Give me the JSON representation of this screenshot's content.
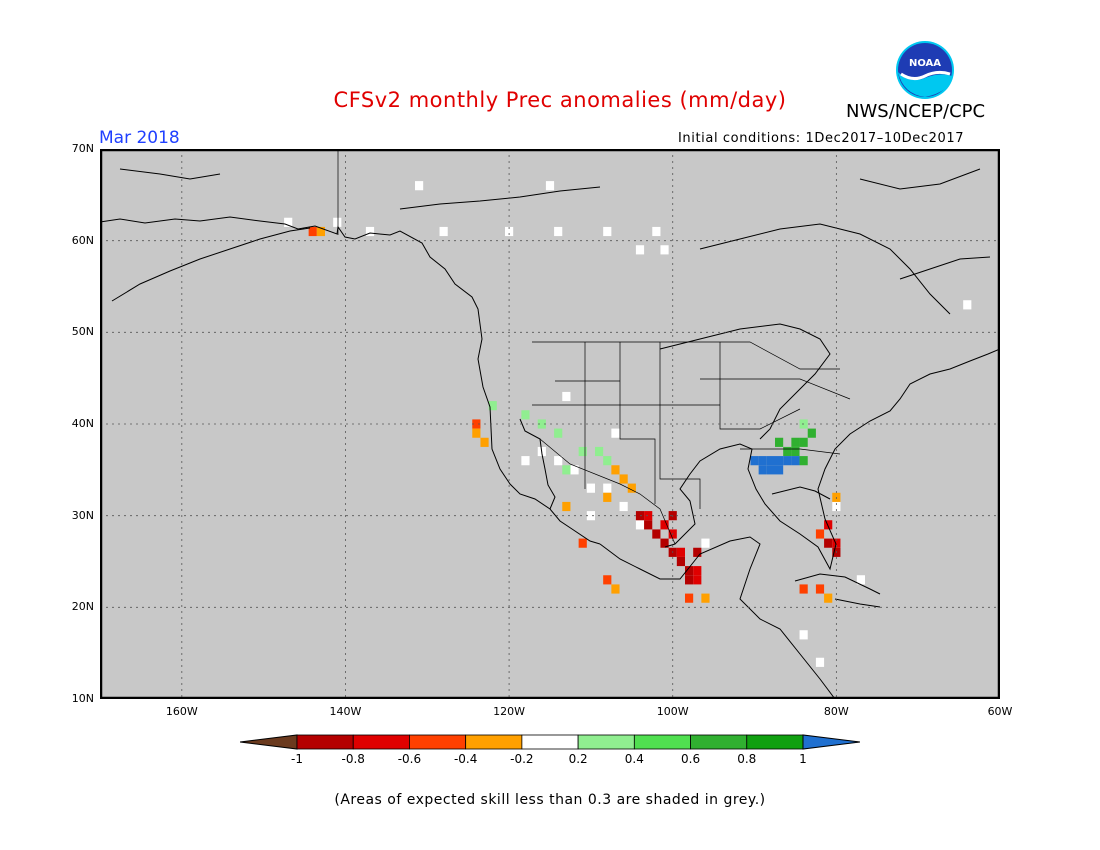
{
  "title": "CFSv2 monthly Prec anomalies (mm/day)",
  "month": "Mar 2018",
  "organization": "NWS/NCEP/CPC",
  "logo_text": "NOAA",
  "initial_conditions": "Initial conditions: 1Dec2017–10Dec2017",
  "footnote": "(Areas of expected skill less than 0.3 are shaded in grey.)",
  "map": {
    "lon_range": [
      -170,
      -60
    ],
    "lat_range": [
      10,
      70
    ],
    "background_color": "#c8c8c8",
    "lat_ticks": [
      {
        "value": 70,
        "label": "70N"
      },
      {
        "value": 60,
        "label": "60N"
      },
      {
        "value": 50,
        "label": "50N"
      },
      {
        "value": 40,
        "label": "40N"
      },
      {
        "value": 30,
        "label": "30N"
      },
      {
        "value": 20,
        "label": "20N"
      },
      {
        "value": 10,
        "label": "10N"
      }
    ],
    "lon_ticks": [
      {
        "value": -160,
        "label": "160W"
      },
      {
        "value": -140,
        "label": "140W"
      },
      {
        "value": -120,
        "label": "120W"
      },
      {
        "value": -100,
        "label": "100W"
      },
      {
        "value": -80,
        "label": "80W"
      },
      {
        "value": -60,
        "label": "60W"
      }
    ],
    "grid": true
  },
  "colorbar": {
    "labels": [
      "-1",
      "-0.8",
      "-0.6",
      "-0.4",
      "-0.2",
      "0.2",
      "0.4",
      "0.6",
      "0.8",
      "1"
    ],
    "colors": [
      "#6b3a1e",
      "#b40000",
      "#e00000",
      "#ff4000",
      "#ffa000",
      "#ffffff",
      "#90ee90",
      "#50e050",
      "#30b030",
      "#10a010",
      "#2070d0"
    ]
  },
  "anomaly_regions": [
    {
      "category": "0.2",
      "color": "#ffffff",
      "cells": [
        [
          -147,
          62
        ],
        [
          -141,
          62
        ],
        [
          -137,
          61
        ],
        [
          -131,
          66
        ],
        [
          -128,
          61
        ],
        [
          -120,
          61
        ],
        [
          -114,
          61
        ],
        [
          -115,
          66
        ],
        [
          -108,
          61
        ],
        [
          -104,
          59
        ],
        [
          -102,
          61
        ],
        [
          -101,
          59
        ],
        [
          -113,
          43
        ],
        [
          -107,
          39
        ],
        [
          -116,
          37
        ],
        [
          -118,
          36
        ],
        [
          -114,
          36
        ],
        [
          -112,
          35
        ],
        [
          -110,
          33
        ],
        [
          -108,
          33
        ],
        [
          -106,
          31
        ],
        [
          -110,
          30
        ],
        [
          -104,
          29
        ],
        [
          -96,
          27
        ],
        [
          -80,
          31
        ],
        [
          -77,
          23
        ],
        [
          -64,
          53
        ],
        [
          -84,
          17
        ],
        [
          -82,
          14
        ]
      ]
    },
    {
      "category": "-0.6",
      "color": "#ff4000",
      "cells": [
        [
          -144,
          61
        ],
        [
          -124,
          40
        ],
        [
          -111,
          27
        ],
        [
          -108,
          23
        ],
        [
          -98,
          21
        ],
        [
          -84,
          22
        ],
        [
          -82,
          22
        ],
        [
          -82,
          28
        ]
      ]
    },
    {
      "category": "-0.4",
      "color": "#ffa000",
      "cells": [
        [
          -143,
          61
        ],
        [
          -124,
          39
        ],
        [
          -123,
          38
        ],
        [
          -113,
          31
        ],
        [
          -107,
          35
        ],
        [
          -106,
          34
        ],
        [
          -105,
          33
        ],
        [
          -108,
          32
        ],
        [
          -107,
          22
        ],
        [
          -96,
          21
        ],
        [
          -81,
          21
        ],
        [
          -80,
          32
        ]
      ]
    },
    {
      "category": "-1",
      "color": "#b40000",
      "cells": [
        [
          -104,
          30
        ],
        [
          -103,
          29
        ],
        [
          -102,
          28
        ],
        [
          -101,
          27
        ],
        [
          -100,
          26
        ],
        [
          -99,
          25
        ],
        [
          -98,
          24
        ],
        [
          -98,
          23
        ],
        [
          -100,
          30
        ],
        [
          -97,
          26
        ],
        [
          -81,
          27
        ],
        [
          -80,
          26
        ]
      ]
    },
    {
      "category": "-0.8",
      "color": "#e00000",
      "cells": [
        [
          -103,
          30
        ],
        [
          -101,
          29
        ],
        [
          -100,
          28
        ],
        [
          -99,
          26
        ],
        [
          -97,
          24
        ],
        [
          -97,
          23
        ],
        [
          -81,
          29
        ],
        [
          -80,
          27
        ]
      ]
    },
    {
      "category": "0.4",
      "color": "#90ee90",
      "cells": [
        [
          -122,
          42
        ],
        [
          -118,
          41
        ],
        [
          -116,
          40
        ],
        [
          -114,
          39
        ],
        [
          -111,
          37
        ],
        [
          -109,
          37
        ],
        [
          -108,
          36
        ],
        [
          -113,
          35
        ],
        [
          -84,
          40
        ]
      ]
    },
    {
      "category": "0.8",
      "color": "#30b030",
      "cells": [
        [
          -87,
          38
        ],
        [
          -85,
          38
        ],
        [
          -84,
          38
        ],
        [
          -83,
          39
        ],
        [
          -86,
          37
        ],
        [
          -85,
          37
        ],
        [
          -84,
          36
        ]
      ]
    },
    {
      "category": "1",
      "color": "#2070d0",
      "cells": [
        [
          -90,
          36
        ],
        [
          -89,
          36
        ],
        [
          -88,
          36
        ],
        [
          -87,
          36
        ],
        [
          -86,
          36
        ],
        [
          -85,
          36
        ],
        [
          -89,
          35
        ],
        [
          -88,
          35
        ],
        [
          -87,
          35
        ]
      ]
    }
  ]
}
